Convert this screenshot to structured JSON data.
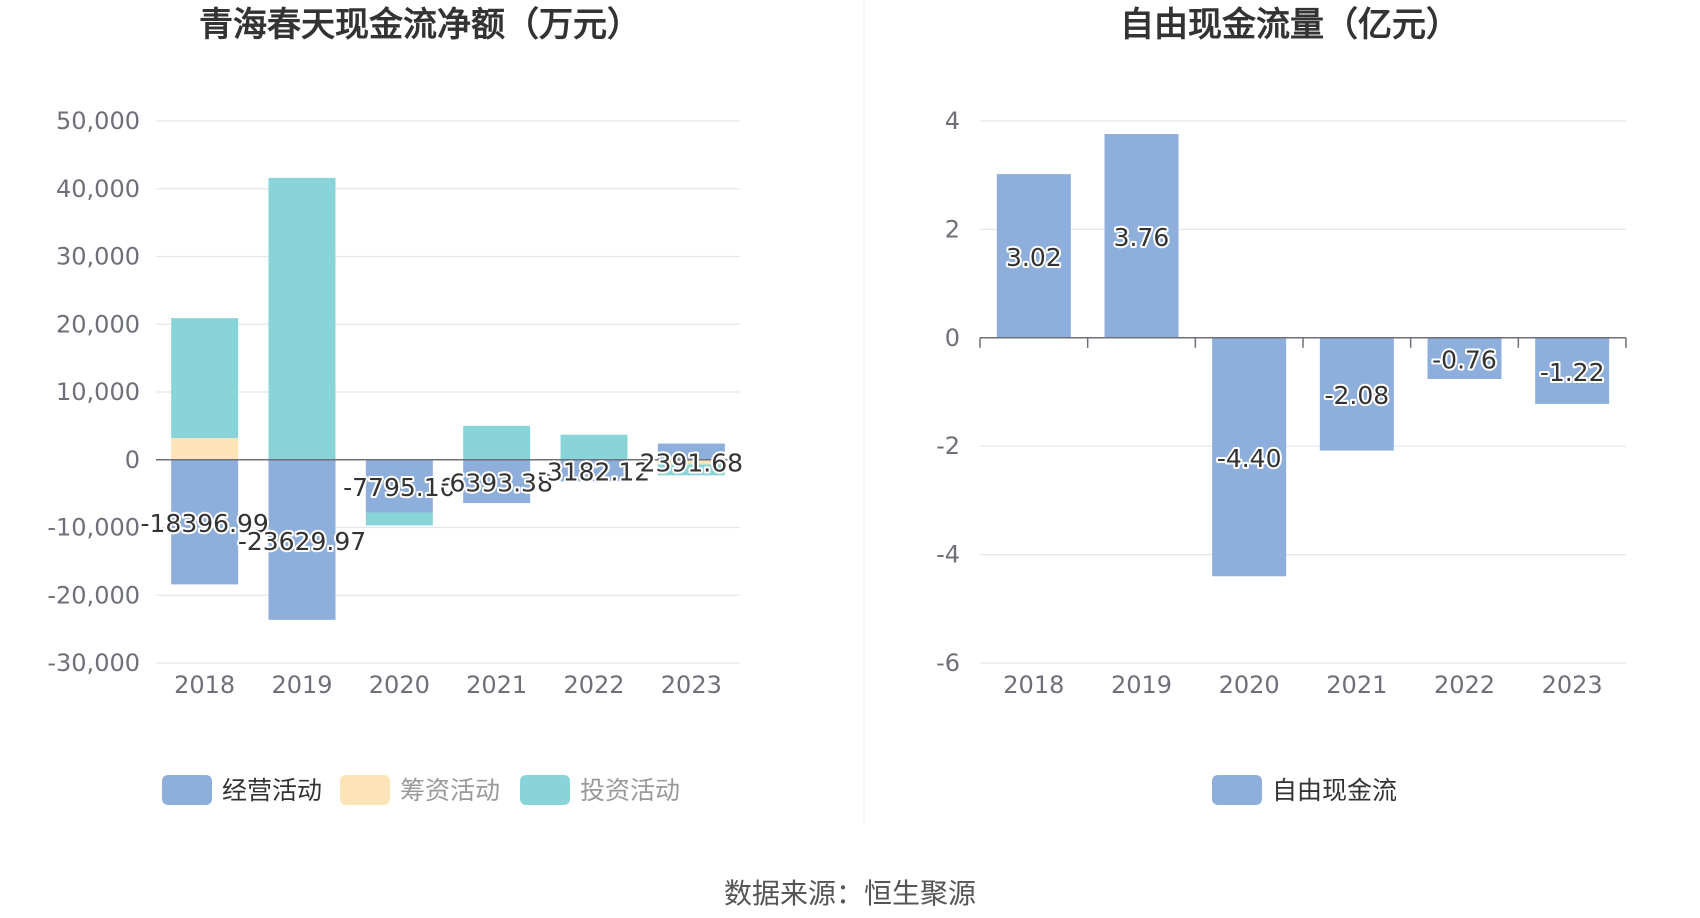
{
  "chart_data": [
    {
      "type": "bar",
      "stacked": true,
      "title": "青海春天现金流净额（万元）",
      "categories": [
        "2018",
        "2019",
        "2020",
        "2021",
        "2022",
        "2023"
      ],
      "ylim": [
        -30000,
        50000
      ],
      "yticks": [
        50000,
        40000,
        30000,
        20000,
        10000,
        0,
        -10000,
        -20000,
        -30000
      ],
      "ytick_labels": [
        "50,000",
        "40,000",
        "30,000",
        "20,000",
        "10,000",
        "0",
        "-10,000",
        "-20,000",
        "-30,000"
      ],
      "grid": true,
      "legend_position": "bottom",
      "series": [
        {
          "name": "经营活动",
          "color": "#8eaedb",
          "values": [
            -18396.99,
            -23629.97,
            -7795.1,
            -6393.38,
            -3182.12,
            2391.68
          ]
        },
        {
          "name": "筹资活动",
          "color": "#fde3b8",
          "values": [
            3200,
            0,
            0,
            0,
            0,
            -700
          ]
        },
        {
          "name": "投资活动",
          "color": "#88d4d8",
          "values": [
            17700,
            41600,
            -1900,
            5000,
            3700,
            -1600
          ]
        }
      ],
      "data_labels": [
        "-18396.99",
        "-23629.97",
        "-7795.10",
        "-6393.38",
        "-3182.12",
        "2391.68"
      ]
    },
    {
      "type": "bar",
      "title": "自由现金流量（亿元）",
      "categories": [
        "2018",
        "2019",
        "2020",
        "2021",
        "2022",
        "2023"
      ],
      "ylim": [
        -6,
        4
      ],
      "yticks": [
        4,
        2,
        0,
        -2,
        -4,
        -6
      ],
      "ytick_labels": [
        "4",
        "2",
        "0",
        "-2",
        "-4",
        "-6"
      ],
      "grid": true,
      "legend_position": "bottom",
      "series": [
        {
          "name": "自由现金流",
          "color": "#8eaedb",
          "values": [
            3.02,
            3.76,
            -4.4,
            -2.08,
            -0.76,
            -1.22
          ]
        }
      ],
      "data_labels": [
        "3.02",
        "3.76",
        "-4.40",
        "-2.08",
        "-0.76",
        "-1.22"
      ]
    }
  ],
  "source": "数据来源：恒生聚源"
}
